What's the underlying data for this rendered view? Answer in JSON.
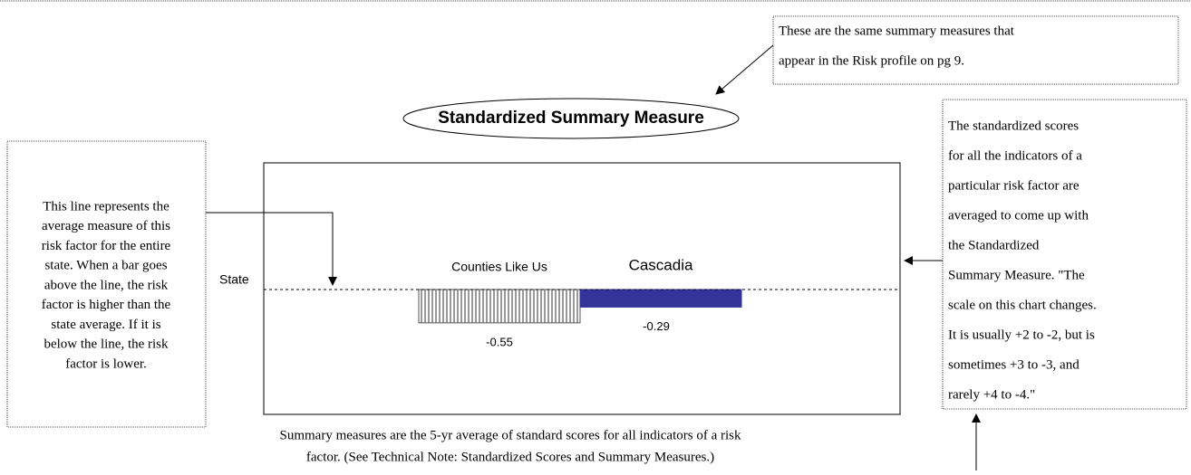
{
  "chart_data": {
    "type": "bar",
    "title": "Standardized Summary Measure",
    "baseline_label": "State",
    "categories": [
      "Counties Like Us",
      "Cascadia"
    ],
    "values": [
      -0.55,
      -0.29
    ],
    "value_labels": [
      "-0.55",
      "-0.29"
    ],
    "colors": [
      "#808080",
      "#333399"
    ],
    "hatch": [
      true,
      false
    ],
    "ylim": [
      -2,
      2
    ],
    "caption": [
      "Summary measures are the 5-yr average of standard scores for all indicators of a risk",
      "factor.  (See Technical Note: Standardized Scores and Summary Measures.)"
    ],
    "annotations": {
      "top": [
        "These are the same summary measures that",
        "appear in the Risk profile on pg 9."
      ],
      "left": [
        "This line represents the",
        "average measure of this",
        "risk factor for the entire",
        "state.  When a bar goes",
        "above the line, the risk",
        "factor is higher than the",
        "state average.  If it is",
        "below the line, the risk",
        "factor is lower."
      ],
      "right": [
        "The standardized scores",
        "for all the indicators of a",
        "particular risk factor are",
        "averaged to come up with",
        "the Standardized",
        "Summary Measure.  \"The",
        "scale on this chart changes.",
        "It is usually +2 to -2, but is",
        "sometimes +3 to -3, and",
        "rarely +4 to -4.\""
      ]
    }
  }
}
